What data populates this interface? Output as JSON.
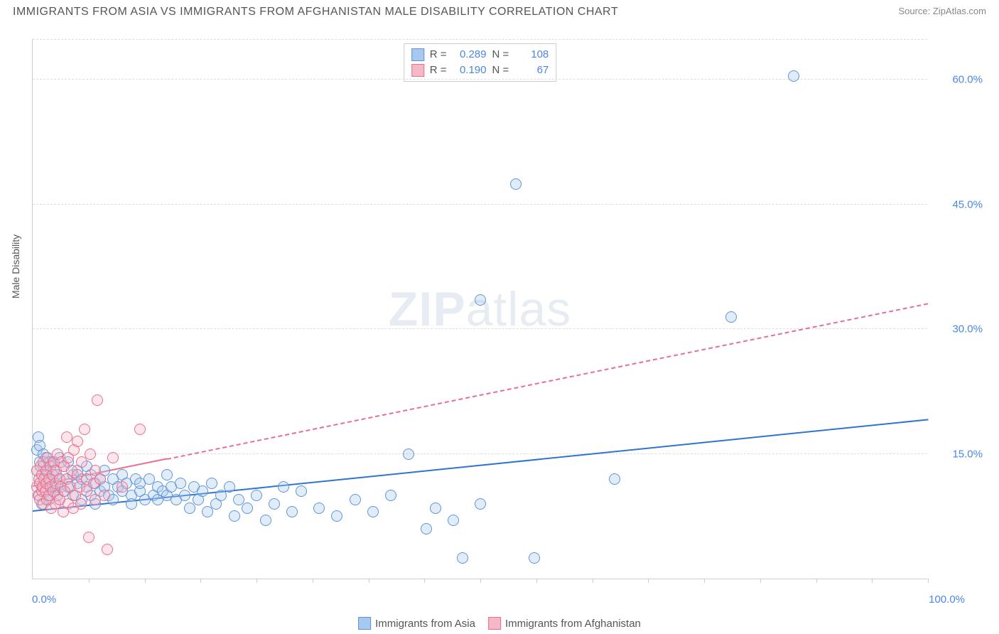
{
  "header": {
    "title": "IMMIGRANTS FROM ASIA VS IMMIGRANTS FROM AFGHANISTAN MALE DISABILITY CORRELATION CHART",
    "source_label": "Source: ",
    "source_name": "ZipAtlas.com"
  },
  "chart": {
    "type": "scatter",
    "ylabel": "Male Disability",
    "xlim": [
      0,
      100
    ],
    "ylim": [
      0,
      65
    ],
    "xtick_labels": {
      "min": "0.0%",
      "max": "100.0%"
    },
    "xtick_positions": [
      0,
      6.25,
      12.5,
      18.75,
      25,
      31.25,
      37.5,
      43.75,
      50,
      56.25,
      62.5,
      68.75,
      75,
      81.25,
      87.5,
      93.75,
      100
    ],
    "ytick_lines": [
      15,
      30,
      45,
      60
    ],
    "ytick_labels": [
      "15.0%",
      "30.0%",
      "45.0%",
      "60.0%"
    ],
    "background_color": "#ffffff",
    "grid_color": "#dddddd",
    "grid_style": "dashed",
    "axis_color": "#cccccc",
    "tick_label_color": "#4a86e8",
    "marker_radius": 8,
    "marker_opacity_fill": 0.35,
    "series": [
      {
        "id": "asia",
        "label": "Immigrants from Asia",
        "fill_color": "#a9c8ef",
        "stroke_color": "#5f95d6",
        "stats": {
          "R": "0.289",
          "N": "108"
        },
        "trend": {
          "x1": 0,
          "y1": 8.0,
          "x2": 100,
          "y2": 19.0,
          "color": "#2f74d0",
          "width": 2.5,
          "dash_after_x": null
        },
        "points": [
          [
            0.5,
            15.5
          ],
          [
            0.5,
            13.0
          ],
          [
            0.6,
            17.0
          ],
          [
            0.7,
            12.0
          ],
          [
            0.7,
            10.0
          ],
          [
            0.8,
            14.0
          ],
          [
            0.8,
            16.0
          ],
          [
            1.0,
            11.0
          ],
          [
            1.0,
            9.0
          ],
          [
            1.2,
            13.5
          ],
          [
            1.2,
            15.0
          ],
          [
            1.4,
            12.5
          ],
          [
            1.5,
            10.5
          ],
          [
            1.5,
            14.5
          ],
          [
            1.6,
            11.5
          ],
          [
            1.7,
            13.0
          ],
          [
            1.8,
            9.5
          ],
          [
            1.8,
            14.0
          ],
          [
            2.0,
            12.0
          ],
          [
            2.0,
            10.0
          ],
          [
            2.2,
            14.0
          ],
          [
            2.2,
            11.0
          ],
          [
            2.4,
            13.0
          ],
          [
            2.5,
            10.5
          ],
          [
            2.6,
            12.5
          ],
          [
            2.8,
            11.0
          ],
          [
            3.0,
            14.5
          ],
          [
            3.0,
            12.0
          ],
          [
            3.0,
            9.5
          ],
          [
            3.5,
            13.5
          ],
          [
            3.5,
            10.5
          ],
          [
            3.8,
            12.0
          ],
          [
            4.0,
            11.0
          ],
          [
            4.0,
            14.0
          ],
          [
            4.5,
            10.0
          ],
          [
            4.5,
            12.5
          ],
          [
            5.0,
            11.5
          ],
          [
            5.0,
            13.0
          ],
          [
            5.5,
            9.5
          ],
          [
            5.5,
            12.0
          ],
          [
            6.0,
            11.0
          ],
          [
            6.0,
            13.5
          ],
          [
            6.5,
            10.0
          ],
          [
            6.5,
            12.5
          ],
          [
            7.0,
            11.5
          ],
          [
            7.0,
            9.0
          ],
          [
            7.5,
            12.0
          ],
          [
            7.5,
            10.5
          ],
          [
            8.0,
            13.0
          ],
          [
            8.0,
            11.0
          ],
          [
            8.5,
            10.0
          ],
          [
            9.0,
            12.0
          ],
          [
            9.0,
            9.5
          ],
          [
            9.5,
            11.0
          ],
          [
            10.0,
            10.5
          ],
          [
            10.0,
            12.5
          ],
          [
            10.5,
            11.5
          ],
          [
            11.0,
            10.0
          ],
          [
            11.0,
            9.0
          ],
          [
            11.5,
            12.0
          ],
          [
            12.0,
            10.5
          ],
          [
            12.0,
            11.5
          ],
          [
            12.5,
            9.5
          ],
          [
            13.0,
            12.0
          ],
          [
            13.5,
            10.0
          ],
          [
            14.0,
            11.0
          ],
          [
            14.0,
            9.5
          ],
          [
            14.5,
            10.5
          ],
          [
            15.0,
            12.5
          ],
          [
            15.0,
            10.0
          ],
          [
            15.5,
            11.0
          ],
          [
            16.0,
            9.5
          ],
          [
            16.5,
            11.5
          ],
          [
            17.0,
            10.0
          ],
          [
            17.5,
            8.5
          ],
          [
            18.0,
            11.0
          ],
          [
            18.5,
            9.5
          ],
          [
            19.0,
            10.5
          ],
          [
            19.5,
            8.0
          ],
          [
            20.0,
            11.5
          ],
          [
            20.5,
            9.0
          ],
          [
            21.0,
            10.0
          ],
          [
            22.0,
            11.0
          ],
          [
            22.5,
            7.5
          ],
          [
            23.0,
            9.5
          ],
          [
            24.0,
            8.5
          ],
          [
            25.0,
            10.0
          ],
          [
            26.0,
            7.0
          ],
          [
            27.0,
            9.0
          ],
          [
            28.0,
            11.0
          ],
          [
            29.0,
            8.0
          ],
          [
            30.0,
            10.5
          ],
          [
            32.0,
            8.5
          ],
          [
            34.0,
            7.5
          ],
          [
            36.0,
            9.5
          ],
          [
            38.0,
            8.0
          ],
          [
            40.0,
            10.0
          ],
          [
            42.0,
            15.0
          ],
          [
            44.0,
            6.0
          ],
          [
            45.0,
            8.5
          ],
          [
            47.0,
            7.0
          ],
          [
            48.0,
            2.5
          ],
          [
            50.0,
            9.0
          ],
          [
            50.0,
            33.5
          ],
          [
            54.0,
            47.5
          ],
          [
            56.0,
            2.5
          ],
          [
            65.0,
            12.0
          ],
          [
            78.0,
            31.5
          ],
          [
            85.0,
            60.5
          ]
        ]
      },
      {
        "id": "afghanistan",
        "label": "Immigrants from Afghanistan",
        "fill_color": "#f5b8c6",
        "stroke_color": "#e96f8f",
        "stats": {
          "R": "0.190",
          "N": "67"
        },
        "trend": {
          "x1": 0,
          "y1": 11.0,
          "x2": 100,
          "y2": 33.0,
          "color": "#e96f8f",
          "width": 2,
          "dash_after_x": 15
        },
        "points": [
          [
            0.5,
            11.0
          ],
          [
            0.5,
            13.0
          ],
          [
            0.6,
            10.0
          ],
          [
            0.7,
            12.0
          ],
          [
            0.8,
            11.5
          ],
          [
            0.8,
            9.5
          ],
          [
            0.9,
            13.5
          ],
          [
            1.0,
            10.5
          ],
          [
            1.0,
            12.5
          ],
          [
            1.1,
            11.0
          ],
          [
            1.2,
            14.0
          ],
          [
            1.2,
            9.0
          ],
          [
            1.3,
            12.0
          ],
          [
            1.4,
            10.5
          ],
          [
            1.5,
            13.0
          ],
          [
            1.5,
            11.5
          ],
          [
            1.6,
            9.5
          ],
          [
            1.7,
            14.5
          ],
          [
            1.8,
            12.0
          ],
          [
            1.8,
            10.0
          ],
          [
            2.0,
            13.5
          ],
          [
            2.0,
            11.0
          ],
          [
            2.1,
            8.5
          ],
          [
            2.2,
            12.5
          ],
          [
            2.3,
            10.5
          ],
          [
            2.4,
            14.0
          ],
          [
            2.5,
            11.5
          ],
          [
            2.5,
            9.0
          ],
          [
            2.6,
            13.0
          ],
          [
            2.8,
            10.0
          ],
          [
            2.8,
            15.0
          ],
          [
            3.0,
            12.0
          ],
          [
            3.0,
            9.5
          ],
          [
            3.2,
            14.0
          ],
          [
            3.2,
            11.0
          ],
          [
            3.4,
            8.0
          ],
          [
            3.5,
            13.5
          ],
          [
            3.6,
            10.5
          ],
          [
            3.8,
            17.0
          ],
          [
            3.8,
            12.0
          ],
          [
            4.0,
            9.0
          ],
          [
            4.0,
            14.5
          ],
          [
            4.2,
            11.0
          ],
          [
            4.4,
            13.0
          ],
          [
            4.5,
            8.5
          ],
          [
            4.6,
            15.5
          ],
          [
            4.8,
            10.0
          ],
          [
            5.0,
            12.5
          ],
          [
            5.0,
            16.5
          ],
          [
            5.2,
            11.0
          ],
          [
            5.4,
            9.0
          ],
          [
            5.5,
            14.0
          ],
          [
            5.8,
            18.0
          ],
          [
            6.0,
            12.0
          ],
          [
            6.0,
            10.5
          ],
          [
            6.3,
            5.0
          ],
          [
            6.4,
            15.0
          ],
          [
            6.8,
            11.5
          ],
          [
            7.0,
            13.0
          ],
          [
            7.0,
            9.5
          ],
          [
            7.2,
            21.5
          ],
          [
            7.5,
            12.0
          ],
          [
            8.0,
            10.0
          ],
          [
            8.3,
            3.5
          ],
          [
            9.0,
            14.5
          ],
          [
            10.0,
            11.0
          ],
          [
            12.0,
            18.0
          ]
        ]
      }
    ],
    "watermark": {
      "zip": "ZIP",
      "atlas": "atlas"
    },
    "legend_top": {
      "R_label": "R =",
      "N_label": "N ="
    },
    "legend_bottom_labels": [
      "Immigrants from Asia",
      "Immigrants from Afghanistan"
    ]
  }
}
